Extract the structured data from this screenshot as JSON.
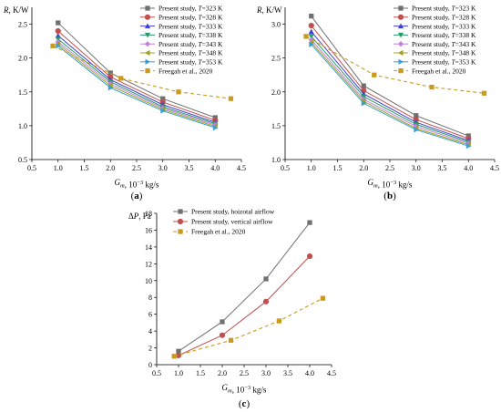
{
  "chart_data": [
    {
      "type": "line",
      "panel": "(a)",
      "ylabel": "R, K/W",
      "xlabel": "G_m, 10^-3 kg/s",
      "xlim": [
        0.5,
        4.5
      ],
      "ylim": [
        0.5,
        2.75
      ],
      "xticks": [
        "0.5",
        "1.0",
        "1.5",
        "2.0",
        "2.5",
        "3.0",
        "3.5",
        "4.0",
        "4.5"
      ],
      "yticks": [
        "0.5",
        "1.0",
        "1.5",
        "2.0",
        "2.5"
      ],
      "grid": false,
      "legend_position": "top-right",
      "series": [
        {
          "name": "Present study, T=323 K",
          "x": [
            1,
            2,
            3,
            4
          ],
          "y": [
            2.52,
            1.78,
            1.4,
            1.12
          ],
          "color": "#707070",
          "marker": "square"
        },
        {
          "name": "Present study, T=328 K",
          "x": [
            1,
            2,
            3,
            4
          ],
          "y": [
            2.4,
            1.72,
            1.35,
            1.08
          ],
          "color": "#c0504d",
          "marker": "circle"
        },
        {
          "name": "Present study, T=333 K",
          "x": [
            1,
            2,
            3,
            4
          ],
          "y": [
            2.33,
            1.68,
            1.31,
            1.05
          ],
          "color": "#4040d0",
          "marker": "triangle-up"
        },
        {
          "name": "Present study, T=338 K",
          "x": [
            1,
            2,
            3,
            4
          ],
          "y": [
            2.28,
            1.65,
            1.28,
            1.03
          ],
          "color": "#2a9a6a",
          "marker": "triangle-down"
        },
        {
          "name": "Present study, T=343 K",
          "x": [
            1,
            2,
            3,
            4
          ],
          "y": [
            2.24,
            1.62,
            1.26,
            1.01
          ],
          "color": "#c080e0",
          "marker": "diamond"
        },
        {
          "name": "Present study, T=348 K",
          "x": [
            1,
            2,
            3,
            4
          ],
          "y": [
            2.21,
            1.59,
            1.24,
            0.99
          ],
          "color": "#a0a020",
          "marker": "triangle-left"
        },
        {
          "name": "Present study, T=353 K",
          "x": [
            1,
            2,
            3,
            4
          ],
          "y": [
            2.18,
            1.56,
            1.22,
            0.97
          ],
          "color": "#3aa0d0",
          "marker": "triangle-right"
        },
        {
          "name": "Freegah et al., 2020",
          "x": [
            0.9,
            2.2,
            3.3,
            4.3
          ],
          "y": [
            2.18,
            1.7,
            1.5,
            1.4
          ],
          "color": "#c89a20",
          "marker": "square",
          "dashed": true
        }
      ]
    },
    {
      "type": "line",
      "panel": "(b)",
      "ylabel": "R, K/W",
      "xlabel": "G_m, 10^-3 kg/s",
      "xlim": [
        0.5,
        4.5
      ],
      "ylim": [
        1.0,
        3.25
      ],
      "xticks": [
        "0.5",
        "1.0",
        "1.5",
        "2.0",
        "2.5",
        "3.0",
        "3.5",
        "4.0",
        "4.5"
      ],
      "yticks": [
        "1.0",
        "1.5",
        "2.0",
        "2.5",
        "3.0"
      ],
      "grid": false,
      "legend_position": "top-right",
      "series": [
        {
          "name": "Present study, T=323 K",
          "x": [
            1,
            2,
            3,
            4
          ],
          "y": [
            3.12,
            2.09,
            1.65,
            1.35
          ],
          "color": "#707070",
          "marker": "square"
        },
        {
          "name": "Present study, T=328 K",
          "x": [
            1,
            2,
            3,
            4
          ],
          "y": [
            2.98,
            2.02,
            1.59,
            1.31
          ],
          "color": "#c0504d",
          "marker": "circle"
        },
        {
          "name": "Present study, T=333 K",
          "x": [
            1,
            2,
            3,
            4
          ],
          "y": [
            2.89,
            1.97,
            1.55,
            1.28
          ],
          "color": "#4040d0",
          "marker": "triangle-up"
        },
        {
          "name": "Present study, T=338 K",
          "x": [
            1,
            2,
            3,
            4
          ],
          "y": [
            2.82,
            1.93,
            1.52,
            1.26
          ],
          "color": "#2a9a6a",
          "marker": "triangle-down"
        },
        {
          "name": "Present study, T=343 K",
          "x": [
            1,
            2,
            3,
            4
          ],
          "y": [
            2.77,
            1.89,
            1.49,
            1.24
          ],
          "color": "#c080e0",
          "marker": "diamond"
        },
        {
          "name": "Present study, T=348 K",
          "x": [
            1,
            2,
            3,
            4
          ],
          "y": [
            2.73,
            1.86,
            1.46,
            1.22
          ],
          "color": "#a0a020",
          "marker": "triangle-left"
        },
        {
          "name": "Present study, T=353 K",
          "x": [
            1,
            2,
            3,
            4
          ],
          "y": [
            2.7,
            1.83,
            1.44,
            1.2
          ],
          "color": "#3aa0d0",
          "marker": "triangle-right"
        },
        {
          "name": "Freegah et al., 2020",
          "x": [
            0.9,
            2.2,
            3.3,
            4.3
          ],
          "y": [
            2.82,
            2.25,
            2.07,
            1.98
          ],
          "color": "#c89a20",
          "marker": "square",
          "dashed": true
        }
      ]
    },
    {
      "type": "line",
      "panel": "(c)",
      "ylabel": "ΔP, Pa",
      "xlabel": "G_m, 10^-3 kg/s",
      "xlim": [
        0.5,
        4.5
      ],
      "ylim": [
        0,
        18
      ],
      "xticks": [
        "0.5",
        "1.0",
        "1.5",
        "2.0",
        "2.5",
        "3.0",
        "3.5",
        "4.0",
        "4.5"
      ],
      "yticks": [
        "0",
        "2",
        "4",
        "6",
        "8",
        "10",
        "12",
        "14",
        "16",
        "18"
      ],
      "grid": false,
      "legend_position": "top-left",
      "series": [
        {
          "name": "Present study, hoizotal airflow",
          "x": [
            1,
            2,
            3,
            4
          ],
          "y": [
            1.6,
            5.1,
            10.2,
            16.9
          ],
          "color": "#707070",
          "marker": "square"
        },
        {
          "name": "Present study, vertical airflow",
          "x": [
            1,
            2,
            3,
            4
          ],
          "y": [
            1.1,
            3.5,
            7.5,
            12.9
          ],
          "color": "#c0504d",
          "marker": "circle"
        },
        {
          "name": "Freegah et al., 2020",
          "x": [
            0.9,
            2.2,
            3.3,
            4.3
          ],
          "y": [
            1.0,
            2.9,
            5.2,
            7.9
          ],
          "color": "#c89a20",
          "marker": "square",
          "dashed": true
        }
      ]
    }
  ]
}
